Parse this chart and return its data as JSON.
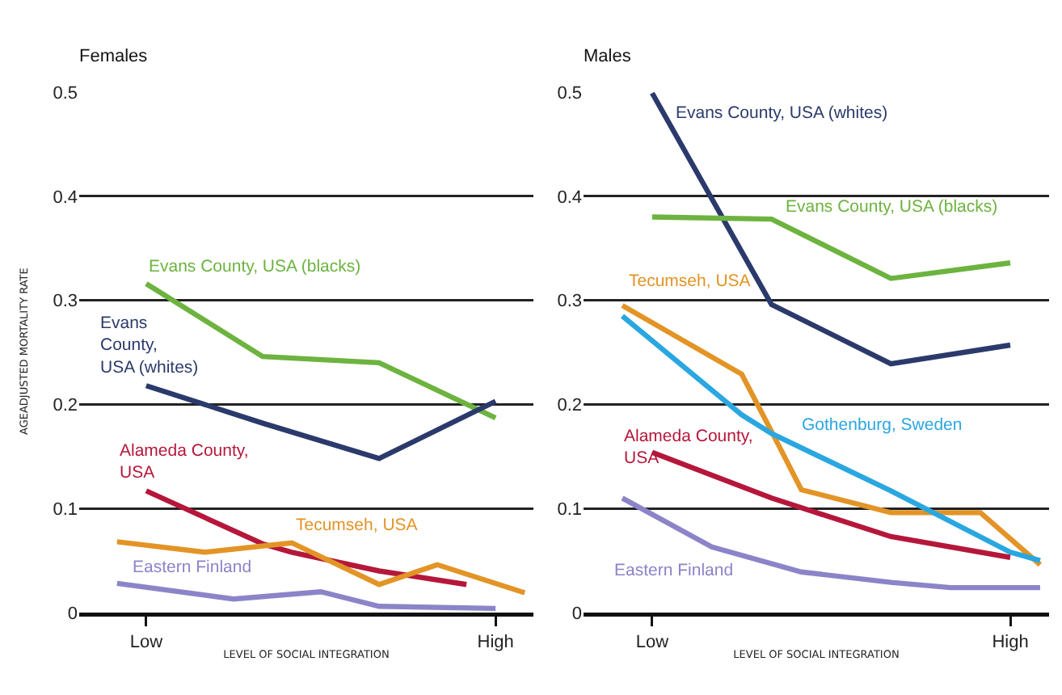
{
  "chart_data": [
    {
      "type": "line",
      "title": "Females",
      "xlabel": "LEVEL OF SOCIAL INTEGRATION",
      "ylabel": "AGEADJUSTED MORTALITY RATE",
      "categories": [
        null,
        null,
        "Low",
        null,
        null,
        null,
        null,
        null,
        null,
        null,
        null,
        null,
        null,
        null,
        "High",
        null
      ],
      "ylim": [
        0,
        0.5
      ],
      "yticks": [
        0,
        0.1,
        0.2,
        0.3,
        0.4,
        0.5
      ],
      "grid": "y",
      "legend": false,
      "series": [
        {
          "name": "Evans County, USA (blacks)",
          "color": "#6db33f",
          "values": [
            null,
            null,
            0.316,
            null,
            null,
            null,
            0.246,
            null,
            null,
            null,
            0.24,
            null,
            null,
            null,
            0.187,
            null
          ]
        },
        {
          "name": "Evans County, USA (whites)",
          "color": "#2b3a6b",
          "values": [
            null,
            null,
            0.218,
            null,
            null,
            null,
            0.182,
            null,
            null,
            null,
            0.148,
            null,
            null,
            null,
            0.203,
            null
          ]
        },
        {
          "name": "Alameda County, USA",
          "color": "#b5173a",
          "values": [
            null,
            null,
            0.117,
            null,
            null,
            null,
            0.066,
            0.058,
            null,
            null,
            0.04,
            null,
            null,
            0.027,
            null,
            null
          ]
        },
        {
          "name": "Tecumseh, USA",
          "color": "#e39426",
          "values": [
            null,
            0.068,
            null,
            null,
            0.058,
            null,
            null,
            0.067,
            null,
            null,
            0.027,
            null,
            0.046,
            null,
            null,
            0.019
          ]
        },
        {
          "name": "Eastern Finland",
          "color": "#8c84c8",
          "values": [
            null,
            0.028,
            null,
            null,
            null,
            0.013,
            null,
            null,
            0.02,
            null,
            0.006,
            null,
            null,
            null,
            0.004,
            null
          ]
        }
      ]
    },
    {
      "type": "line",
      "title": "Males",
      "xlabel": "LEVEL OF SOCIAL INTEGRATION",
      "categories": [
        null,
        null,
        "Low",
        null,
        null,
        null,
        null,
        null,
        null,
        null,
        null,
        null,
        null,
        null,
        "High",
        null
      ],
      "ylim": [
        0,
        0.5
      ],
      "yticks": [
        0,
        0.1,
        0.2,
        0.3,
        0.4,
        0.5
      ],
      "grid": "y",
      "legend": false,
      "series": [
        {
          "name": "Evans County, USA (whites)",
          "color": "#2b3a6b",
          "values": [
            null,
            null,
            0.499,
            null,
            null,
            null,
            0.296,
            null,
            null,
            null,
            0.239,
            null,
            null,
            null,
            0.257,
            null
          ]
        },
        {
          "name": "Evans County, USA (blacks)",
          "color": "#6db33f",
          "values": [
            null,
            null,
            0.38,
            null,
            null,
            null,
            0.378,
            null,
            null,
            null,
            0.321,
            null,
            null,
            null,
            0.336,
            null
          ]
        },
        {
          "name": "Tecumseh, USA",
          "color": "#e39426",
          "values": [
            null,
            0.295,
            null,
            null,
            null,
            0.229,
            0.174,
            0.118,
            null,
            null,
            0.096,
            null,
            null,
            0.096,
            null,
            0.046
          ]
        },
        {
          "name": "Gothenburg, Sweden",
          "color": "#2aa7e0",
          "values": [
            null,
            0.285,
            null,
            null,
            null,
            0.19,
            0.172,
            null,
            null,
            null,
            0.117,
            null,
            null,
            null,
            0.058,
            0.05
          ]
        },
        {
          "name": "Alameda County, USA",
          "color": "#b5173a",
          "values": [
            null,
            null,
            0.154,
            null,
            null,
            null,
            0.11,
            null,
            null,
            null,
            0.073,
            null,
            null,
            null,
            0.053,
            null
          ]
        },
        {
          "name": "Eastern Finland",
          "color": "#8c84c8",
          "values": [
            null,
            0.11,
            null,
            null,
            0.063,
            null,
            null,
            0.039,
            null,
            null,
            0.029,
            null,
            0.024,
            null,
            null,
            0.024
          ]
        }
      ]
    }
  ]
}
